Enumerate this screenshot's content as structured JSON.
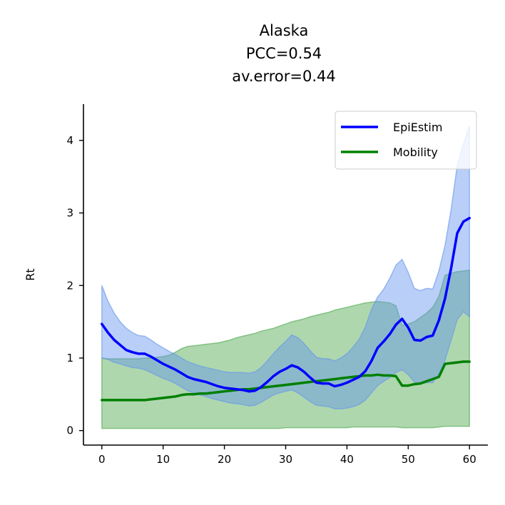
{
  "chart_data": {
    "type": "line",
    "title": [
      "Alaska",
      "PCC=0.54",
      "av.error=0.44"
    ],
    "xlabel": "",
    "ylabel": "Rt",
    "xlim": [
      -3,
      63
    ],
    "ylim": [
      -0.2,
      4.5
    ],
    "xticks": [
      0,
      10,
      20,
      30,
      40,
      50,
      60
    ],
    "yticks": [
      0,
      1,
      2,
      3,
      4
    ],
    "grid": false,
    "legend": "top-right",
    "x": [
      0,
      1,
      2,
      3,
      4,
      5,
      6,
      7,
      8,
      9,
      10,
      11,
      12,
      13,
      14,
      15,
      16,
      17,
      18,
      19,
      20,
      21,
      22,
      23,
      24,
      25,
      26,
      27,
      28,
      29,
      30,
      31,
      32,
      33,
      34,
      35,
      36,
      37,
      38,
      39,
      40,
      41,
      42,
      43,
      44,
      45,
      46,
      47,
      48,
      49,
      50,
      51,
      52,
      53,
      54,
      55,
      56,
      57,
      58,
      59,
      60
    ],
    "series": [
      {
        "name": "EpiEstim",
        "color": "#0000ff",
        "band_color": "#6495ed",
        "values": [
          1.47,
          1.35,
          1.25,
          1.18,
          1.11,
          1.08,
          1.06,
          1.06,
          1.02,
          0.97,
          0.92,
          0.88,
          0.84,
          0.79,
          0.74,
          0.71,
          0.69,
          0.67,
          0.64,
          0.61,
          0.59,
          0.58,
          0.57,
          0.56,
          0.54,
          0.55,
          0.6,
          0.67,
          0.75,
          0.81,
          0.85,
          0.9,
          0.87,
          0.81,
          0.73,
          0.66,
          0.65,
          0.65,
          0.61,
          0.63,
          0.66,
          0.7,
          0.74,
          0.82,
          0.96,
          1.14,
          1.23,
          1.33,
          1.46,
          1.54,
          1.42,
          1.25,
          1.24,
          1.29,
          1.31,
          1.52,
          1.82,
          2.24,
          2.72,
          2.88,
          2.93
        ],
        "lower": [
          1.0,
          0.98,
          0.94,
          0.92,
          0.89,
          0.87,
          0.86,
          0.84,
          0.8,
          0.76,
          0.72,
          0.69,
          0.65,
          0.6,
          0.55,
          0.52,
          0.49,
          0.47,
          0.44,
          0.42,
          0.4,
          0.38,
          0.37,
          0.36,
          0.34,
          0.35,
          0.39,
          0.44,
          0.49,
          0.52,
          0.54,
          0.56,
          0.52,
          0.46,
          0.4,
          0.35,
          0.34,
          0.33,
          0.3,
          0.3,
          0.31,
          0.33,
          0.36,
          0.42,
          0.52,
          0.62,
          0.68,
          0.73,
          0.8,
          0.84,
          0.77,
          0.67,
          0.65,
          0.66,
          0.66,
          0.78,
          0.97,
          1.25,
          1.53,
          1.64,
          1.57
        ],
        "upper": [
          2.0,
          1.78,
          1.62,
          1.5,
          1.41,
          1.35,
          1.31,
          1.3,
          1.25,
          1.19,
          1.14,
          1.09,
          1.05,
          1.0,
          0.95,
          0.92,
          0.89,
          0.87,
          0.85,
          0.83,
          0.81,
          0.8,
          0.8,
          0.8,
          0.79,
          0.81,
          0.87,
          0.96,
          1.06,
          1.15,
          1.23,
          1.32,
          1.28,
          1.2,
          1.1,
          1.01,
          0.99,
          0.99,
          0.96,
          1.0,
          1.06,
          1.15,
          1.26,
          1.43,
          1.67,
          1.84,
          1.95,
          2.1,
          2.28,
          2.36,
          2.18,
          1.96,
          1.93,
          1.96,
          1.95,
          2.2,
          2.55,
          3.05,
          3.65,
          3.95,
          4.2
        ]
      },
      {
        "name": "Mobility",
        "color": "#008000",
        "band_color": "#4ca64c",
        "values": [
          0.42,
          0.42,
          0.42,
          0.42,
          0.42,
          0.42,
          0.42,
          0.42,
          0.43,
          0.44,
          0.45,
          0.46,
          0.47,
          0.49,
          0.5,
          0.5,
          0.51,
          0.51,
          0.52,
          0.53,
          0.54,
          0.55,
          0.56,
          0.57,
          0.57,
          0.58,
          0.59,
          0.6,
          0.61,
          0.62,
          0.63,
          0.64,
          0.65,
          0.66,
          0.67,
          0.68,
          0.69,
          0.7,
          0.71,
          0.72,
          0.73,
          0.74,
          0.75,
          0.76,
          0.76,
          0.77,
          0.76,
          0.76,
          0.75,
          0.62,
          0.62,
          0.64,
          0.65,
          0.68,
          0.71,
          0.74,
          0.92,
          0.93,
          0.94,
          0.95,
          0.95
        ],
        "lower": [
          0.03,
          0.03,
          0.03,
          0.03,
          0.03,
          0.03,
          0.03,
          0.03,
          0.03,
          0.03,
          0.03,
          0.03,
          0.03,
          0.03,
          0.03,
          0.03,
          0.03,
          0.03,
          0.03,
          0.03,
          0.03,
          0.03,
          0.03,
          0.03,
          0.03,
          0.03,
          0.03,
          0.03,
          0.03,
          0.03,
          0.04,
          0.04,
          0.04,
          0.04,
          0.04,
          0.04,
          0.04,
          0.04,
          0.04,
          0.04,
          0.04,
          0.05,
          0.05,
          0.05,
          0.05,
          0.05,
          0.05,
          0.05,
          0.05,
          0.04,
          0.04,
          0.04,
          0.04,
          0.04,
          0.04,
          0.05,
          0.06,
          0.06,
          0.06,
          0.06,
          0.06
        ],
        "upper": [
          1.0,
          0.99,
          0.99,
          0.99,
          0.99,
          0.99,
          0.99,
          1.0,
          1.0,
          1.01,
          1.02,
          1.04,
          1.08,
          1.13,
          1.16,
          1.17,
          1.18,
          1.19,
          1.2,
          1.21,
          1.23,
          1.25,
          1.28,
          1.3,
          1.32,
          1.34,
          1.37,
          1.39,
          1.41,
          1.44,
          1.47,
          1.5,
          1.52,
          1.54,
          1.57,
          1.59,
          1.61,
          1.63,
          1.66,
          1.68,
          1.7,
          1.72,
          1.74,
          1.76,
          1.77,
          1.78,
          1.77,
          1.76,
          1.72,
          1.45,
          1.47,
          1.5,
          1.56,
          1.62,
          1.7,
          1.85,
          2.14,
          2.17,
          2.19,
          2.2,
          2.21
        ]
      }
    ]
  }
}
